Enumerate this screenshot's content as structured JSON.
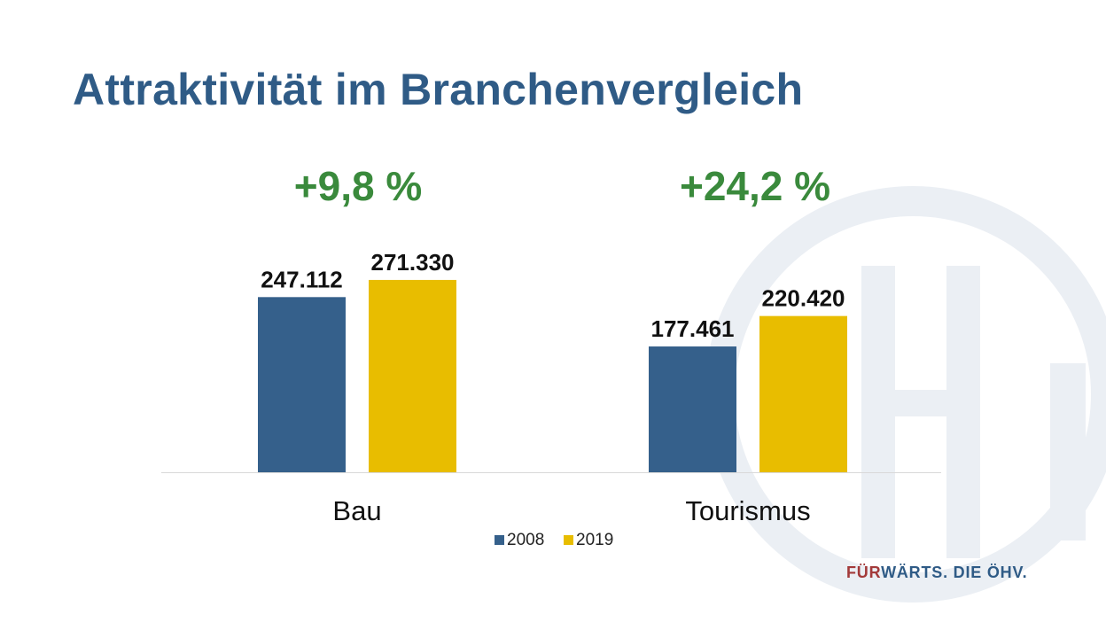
{
  "title": "Attraktivität im Branchenvergleich",
  "growth_labels": [
    "+9,8 %",
    "+24,2 %"
  ],
  "slogan": {
    "accent": "FÜR",
    "rest": "WÄRTS. DIE ÖHV."
  },
  "colors": {
    "title": "#2f5b86",
    "growth": "#3a8a3c",
    "series_2008": "#35608b",
    "series_2019": "#e8bd00",
    "slogan_accent": "#a33a3a",
    "logo_watermark": "#ebeff4"
  },
  "logo_icon": "oehv-logo-watermark",
  "chart_data": {
    "type": "bar",
    "categories": [
      "Bau",
      "Tourismus"
    ],
    "series": [
      {
        "name": "2008",
        "values": [
          247112,
          177461
        ],
        "labels": [
          "247.112",
          "177.461"
        ],
        "color": "#35608b"
      },
      {
        "name": "2019",
        "values": [
          271330,
          220420
        ],
        "labels": [
          "271.330",
          "220.420"
        ],
        "color": "#e8bd00"
      }
    ],
    "ylim": [
      0,
      290000
    ],
    "grid": false,
    "legend": "bottom-center",
    "title": "",
    "xlabel": "",
    "ylabel": ""
  }
}
